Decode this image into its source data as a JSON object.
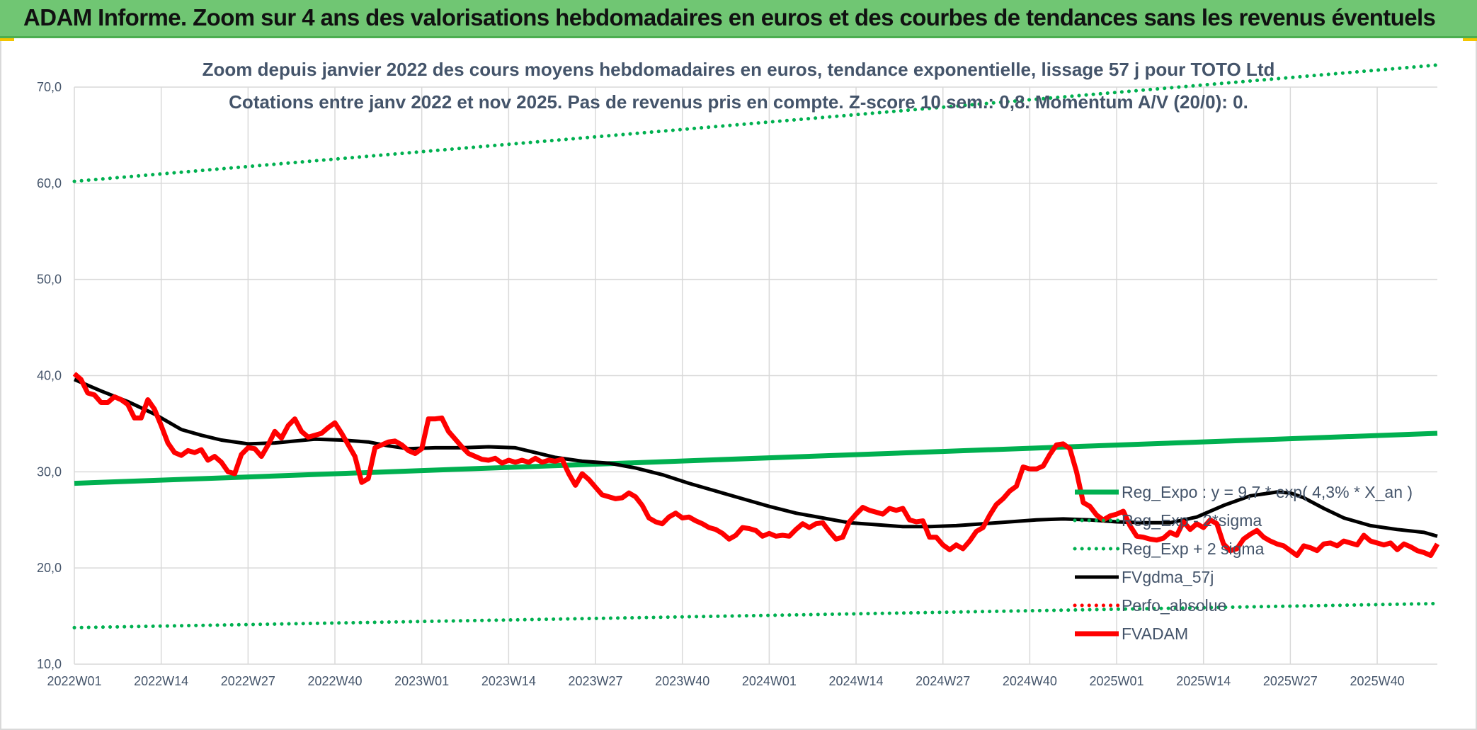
{
  "header": {
    "title": "ADAM Informe. Zoom sur 4 ans des valorisations hebdomadaires en euros et des courbes de tendances sans les revenus éventuels"
  },
  "chart_data": {
    "type": "line",
    "title": "Zoom depuis janvier 2022 des cours moyens hebdomadaires en euros, tendance exponentielle, lissage 57 j pour TOTO Ltd",
    "subtitle": "Cotations entre janv 2022 et nov 2025. Pas de revenus pris en compte. Z-score 10 sem.: 0,8. Momentum A/V (20/0): 0.",
    "xlabel": "",
    "ylabel": "",
    "ylim": [
      10,
      70
    ],
    "yticks": [
      "10,0",
      "20,0",
      "30,0",
      "40,0",
      "50,0",
      "60,0",
      "70,0"
    ],
    "xticks": [
      "2022W01",
      "2022W14",
      "2022W27",
      "2022W40",
      "2023W01",
      "2023W14",
      "2023W27",
      "2023W40",
      "2024W01",
      "2024W14",
      "2024W27",
      "2024W40",
      "2025W01",
      "2025W14",
      "2025W27",
      "2025W40"
    ],
    "grid": true,
    "legend_position": "right",
    "colors": {
      "reg_expo": "#00b050",
      "fvgdma": "#000000",
      "perfo": "#ff0000",
      "fvadam": "#ff0000",
      "grid": "#d9d9d9",
      "text": "#44546a"
    },
    "series": [
      {
        "name": "Reg_Expo : y = 9,7 * exp( 4,3% *  X_an )",
        "key": "reg_expo",
        "style": "solid-thick",
        "points": [
          [
            0,
            28.8
          ],
          [
            204,
            34.0
          ]
        ]
      },
      {
        "name": "Reg_Exp - 2*sigma",
        "key": "reg_minus",
        "style": "dotted",
        "points": [
          [
            0,
            13.8
          ],
          [
            204,
            16.3
          ]
        ]
      },
      {
        "name": "Reg_Exp + 2 sigma",
        "key": "reg_plus",
        "style": "dotted",
        "points": [
          [
            0,
            60.2
          ],
          [
            204,
            72.3
          ]
        ]
      },
      {
        "name": "FVgdma_57j",
        "key": "fvgdma",
        "style": "solid",
        "points": [
          [
            0,
            39.6
          ],
          [
            4,
            38.4
          ],
          [
            8,
            37.3
          ],
          [
            12,
            36.0
          ],
          [
            14,
            35.2
          ],
          [
            16,
            34.4
          ],
          [
            19,
            33.8
          ],
          [
            22,
            33.3
          ],
          [
            26,
            32.9
          ],
          [
            30,
            33.0
          ],
          [
            33,
            33.2
          ],
          [
            36,
            33.4
          ],
          [
            40,
            33.3
          ],
          [
            44,
            33.1
          ],
          [
            47,
            32.7
          ],
          [
            50,
            32.4
          ],
          [
            54,
            32.5
          ],
          [
            58,
            32.5
          ],
          [
            62,
            32.6
          ],
          [
            66,
            32.5
          ],
          [
            69,
            32.0
          ],
          [
            72,
            31.5
          ],
          [
            76,
            31.1
          ],
          [
            80,
            30.9
          ],
          [
            84,
            30.4
          ],
          [
            88,
            29.7
          ],
          [
            92,
            28.8
          ],
          [
            96,
            28.0
          ],
          [
            100,
            27.2
          ],
          [
            104,
            26.4
          ],
          [
            108,
            25.7
          ],
          [
            112,
            25.2
          ],
          [
            116,
            24.7
          ],
          [
            120,
            24.5
          ],
          [
            124,
            24.3
          ],
          [
            128,
            24.3
          ],
          [
            132,
            24.4
          ],
          [
            136,
            24.6
          ],
          [
            140,
            24.8
          ],
          [
            144,
            25.0
          ],
          [
            148,
            25.1
          ],
          [
            152,
            25.0
          ],
          [
            156,
            24.8
          ],
          [
            160,
            24.7
          ],
          [
            164,
            24.7
          ],
          [
            168,
            25.3
          ],
          [
            172,
            26.5
          ],
          [
            176,
            27.5
          ],
          [
            180,
            27.9
          ],
          [
            182,
            27.8
          ],
          [
            184,
            27.3
          ],
          [
            187,
            26.2
          ],
          [
            190,
            25.2
          ],
          [
            194,
            24.4
          ],
          [
            198,
            24.0
          ],
          [
            202,
            23.7
          ],
          [
            204,
            23.3
          ]
        ]
      },
      {
        "name": "Perfo_absolue",
        "key": "perfo",
        "style": "dotted",
        "points": []
      },
      {
        "name": "FVADAM",
        "key": "fvadam",
        "style": "solid-thick",
        "points": [
          [
            0,
            40.2
          ],
          [
            1,
            39.6
          ],
          [
            2,
            38.2
          ],
          [
            3,
            38.0
          ],
          [
            4,
            37.2
          ],
          [
            5,
            37.2
          ],
          [
            6,
            37.8
          ],
          [
            7,
            37.5
          ],
          [
            8,
            37.0
          ],
          [
            9,
            35.6
          ],
          [
            10,
            35.6
          ],
          [
            11,
            37.5
          ],
          [
            12,
            36.5
          ],
          [
            13,
            34.8
          ],
          [
            14,
            33.0
          ],
          [
            15,
            32.0
          ],
          [
            16,
            31.7
          ],
          [
            17,
            32.2
          ],
          [
            18,
            32.0
          ],
          [
            19,
            32.3
          ],
          [
            20,
            31.2
          ],
          [
            21,
            31.6
          ],
          [
            22,
            31.0
          ],
          [
            23,
            30.0
          ],
          [
            24,
            29.8
          ],
          [
            25,
            31.8
          ],
          [
            26,
            32.5
          ],
          [
            27,
            32.4
          ],
          [
            28,
            31.6
          ],
          [
            29,
            32.8
          ],
          [
            30,
            34.2
          ],
          [
            31,
            33.5
          ],
          [
            32,
            34.8
          ],
          [
            33,
            35.5
          ],
          [
            34,
            34.2
          ],
          [
            35,
            33.6
          ],
          [
            36,
            33.8
          ],
          [
            37,
            34.0
          ],
          [
            38,
            34.6
          ],
          [
            39,
            35.1
          ],
          [
            40,
            34.0
          ],
          [
            41,
            32.8
          ],
          [
            42,
            31.6
          ],
          [
            43,
            28.9
          ],
          [
            44,
            29.3
          ],
          [
            45,
            32.5
          ],
          [
            46,
            32.8
          ],
          [
            47,
            33.1
          ],
          [
            48,
            33.2
          ],
          [
            49,
            32.8
          ],
          [
            50,
            32.2
          ],
          [
            51,
            31.9
          ],
          [
            52,
            32.4
          ],
          [
            53,
            35.5
          ],
          [
            54,
            35.5
          ],
          [
            55,
            35.6
          ],
          [
            56,
            34.2
          ],
          [
            57,
            33.4
          ],
          [
            58,
            32.6
          ],
          [
            59,
            31.9
          ],
          [
            60,
            31.6
          ],
          [
            61,
            31.3
          ],
          [
            62,
            31.2
          ],
          [
            63,
            31.4
          ],
          [
            64,
            30.9
          ],
          [
            65,
            31.2
          ],
          [
            66,
            31.0
          ],
          [
            67,
            31.2
          ],
          [
            68,
            31.0
          ],
          [
            69,
            31.4
          ],
          [
            70,
            31.0
          ],
          [
            71,
            31.2
          ],
          [
            72,
            31.1
          ],
          [
            73,
            31.3
          ],
          [
            74,
            29.8
          ],
          [
            75,
            28.6
          ],
          [
            76,
            29.8
          ],
          [
            77,
            29.2
          ],
          [
            78,
            28.4
          ],
          [
            79,
            27.6
          ],
          [
            80,
            27.4
          ],
          [
            81,
            27.2
          ],
          [
            82,
            27.3
          ],
          [
            83,
            27.8
          ],
          [
            84,
            27.4
          ],
          [
            85,
            26.5
          ],
          [
            86,
            25.2
          ],
          [
            87,
            24.8
          ],
          [
            88,
            24.6
          ],
          [
            89,
            25.3
          ],
          [
            90,
            25.7
          ],
          [
            91,
            25.2
          ],
          [
            92,
            25.3
          ],
          [
            93,
            24.9
          ],
          [
            94,
            24.6
          ],
          [
            95,
            24.2
          ],
          [
            96,
            24.0
          ],
          [
            97,
            23.6
          ],
          [
            98,
            23.0
          ],
          [
            99,
            23.4
          ],
          [
            100,
            24.2
          ],
          [
            101,
            24.1
          ],
          [
            102,
            23.9
          ],
          [
            103,
            23.3
          ],
          [
            104,
            23.6
          ],
          [
            105,
            23.3
          ],
          [
            106,
            23.4
          ],
          [
            107,
            23.3
          ],
          [
            108,
            24.0
          ],
          [
            109,
            24.6
          ],
          [
            110,
            24.2
          ],
          [
            111,
            24.6
          ],
          [
            112,
            24.7
          ],
          [
            113,
            23.8
          ],
          [
            114,
            23.0
          ],
          [
            115,
            23.2
          ],
          [
            116,
            24.8
          ],
          [
            117,
            25.6
          ],
          [
            118,
            26.3
          ],
          [
            119,
            26.0
          ],
          [
            120,
            25.8
          ],
          [
            121,
            25.6
          ],
          [
            122,
            26.2
          ],
          [
            123,
            26.0
          ],
          [
            124,
            26.2
          ],
          [
            125,
            25.0
          ],
          [
            126,
            24.8
          ],
          [
            127,
            24.9
          ],
          [
            128,
            23.2
          ],
          [
            129,
            23.2
          ],
          [
            130,
            22.4
          ],
          [
            131,
            21.9
          ],
          [
            132,
            22.4
          ],
          [
            133,
            22.0
          ],
          [
            134,
            22.8
          ],
          [
            135,
            23.8
          ],
          [
            136,
            24.2
          ],
          [
            137,
            25.5
          ],
          [
            138,
            26.6
          ],
          [
            139,
            27.2
          ],
          [
            140,
            28.0
          ],
          [
            141,
            28.5
          ],
          [
            142,
            30.5
          ],
          [
            143,
            30.3
          ],
          [
            144,
            30.3
          ],
          [
            145,
            30.6
          ],
          [
            146,
            31.8
          ],
          [
            147,
            32.8
          ],
          [
            148,
            32.9
          ],
          [
            149,
            32.4
          ],
          [
            150,
            30.0
          ],
          [
            151,
            26.8
          ],
          [
            152,
            26.4
          ],
          [
            153,
            25.5
          ],
          [
            154,
            25.0
          ],
          [
            155,
            25.4
          ],
          [
            156,
            25.6
          ],
          [
            157,
            25.9
          ],
          [
            158,
            24.4
          ],
          [
            159,
            23.3
          ],
          [
            160,
            23.2
          ],
          [
            161,
            23.0
          ],
          [
            162,
            22.9
          ],
          [
            163,
            23.1
          ],
          [
            164,
            23.7
          ],
          [
            165,
            23.4
          ],
          [
            166,
            24.8
          ],
          [
            167,
            24.0
          ],
          [
            168,
            24.6
          ],
          [
            169,
            24.2
          ],
          [
            170,
            25.0
          ],
          [
            171,
            24.6
          ],
          [
            172,
            22.5
          ],
          [
            173,
            21.8
          ],
          [
            174,
            22.0
          ],
          [
            175,
            23.0
          ],
          [
            176,
            23.5
          ],
          [
            177,
            23.9
          ],
          [
            178,
            23.2
          ],
          [
            179,
            22.8
          ],
          [
            180,
            22.5
          ],
          [
            181,
            22.3
          ],
          [
            182,
            21.8
          ],
          [
            183,
            21.3
          ],
          [
            184,
            22.3
          ],
          [
            185,
            22.1
          ],
          [
            186,
            21.8
          ],
          [
            187,
            22.5
          ],
          [
            188,
            22.6
          ],
          [
            189,
            22.3
          ],
          [
            190,
            22.8
          ],
          [
            191,
            22.6
          ],
          [
            192,
            22.4
          ],
          [
            193,
            23.4
          ],
          [
            194,
            22.8
          ],
          [
            195,
            22.6
          ],
          [
            196,
            22.4
          ],
          [
            197,
            22.6
          ],
          [
            198,
            21.9
          ],
          [
            199,
            22.5
          ],
          [
            200,
            22.2
          ],
          [
            201,
            21.8
          ],
          [
            202,
            21.6
          ],
          [
            203,
            21.3
          ],
          [
            204,
            22.5
          ]
        ]
      }
    ]
  }
}
